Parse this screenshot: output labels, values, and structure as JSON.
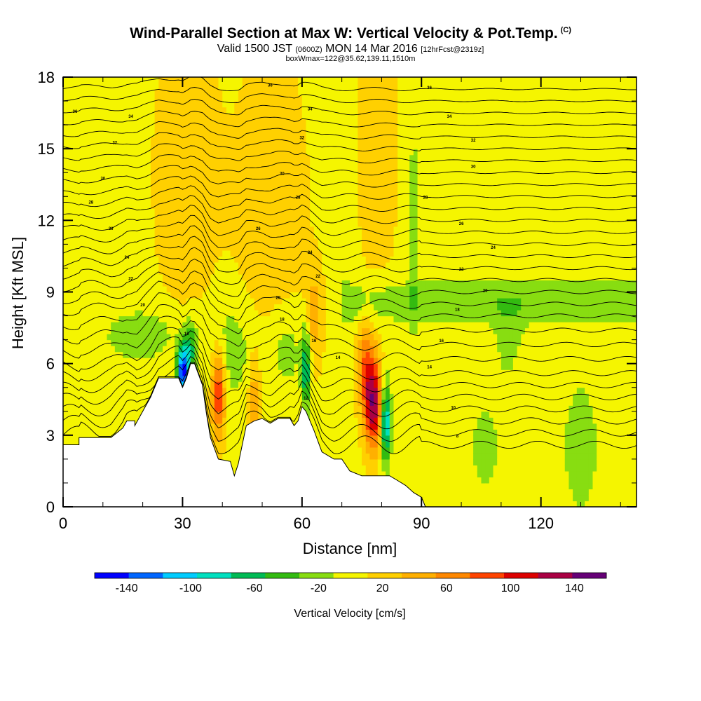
{
  "header": {
    "title": "Wind-Parallel Section at Max W: Vertical Velocity & Pot.Temp.",
    "title_mark": "(C)",
    "valid_a": "Valid 1500 JST",
    "valid_b": "(0600Z)",
    "valid_c": "MON 14 Mar 2016",
    "valid_d": "[12hrFcst@2319z]",
    "boxw": "boxWmax=122@35.62,139.11,1510m"
  },
  "chart_data": {
    "type": "heatmap",
    "xlabel": "Distance [nm]",
    "ylabel": "Height [Kft MSL]",
    "xlim": [
      0,
      144
    ],
    "ylim": [
      0,
      18
    ],
    "x_ticks": [
      "0",
      "30",
      "60",
      "90",
      "120"
    ],
    "y_ticks": [
      "0",
      "3",
      "6",
      "9",
      "12",
      "15",
      "18"
    ],
    "colorbar": {
      "label": "Vertical Velocity [cm/s]",
      "bounds": [
        -160,
        160
      ],
      "tick_labels": [
        "-140",
        "-100",
        "-60",
        "-20",
        "20",
        "60",
        "100",
        "140"
      ],
      "colors": [
        "#0000ff",
        "#0066ff",
        "#00ccff",
        "#00e0c0",
        "#00bb55",
        "#33bb11",
        "#88dd11",
        "#f5f500",
        "#ffd000",
        "#ffb000",
        "#ff8800",
        "#ff4400",
        "#dd0000",
        "#aa0044",
        "#660077"
      ]
    },
    "terrain": [
      [
        0,
        2.6
      ],
      [
        4,
        2.6
      ],
      [
        4,
        2.9
      ],
      [
        12,
        2.9
      ],
      [
        15,
        3.3
      ],
      [
        16,
        3.6
      ],
      [
        18,
        3.6
      ],
      [
        18,
        3.4
      ],
      [
        20,
        4
      ],
      [
        22,
        4.6
      ],
      [
        24,
        5.4
      ],
      [
        26,
        5.4
      ],
      [
        29,
        5.4
      ],
      [
        30,
        5
      ],
      [
        31,
        5.4
      ],
      [
        32,
        6
      ],
      [
        33,
        6
      ],
      [
        35,
        5.1
      ],
      [
        36,
        3.9
      ],
      [
        37,
        2.9
      ],
      [
        39,
        2
      ],
      [
        42,
        1.9
      ],
      [
        43,
        1.3
      ],
      [
        44,
        1.8
      ],
      [
        46,
        3.4
      ],
      [
        48,
        3.6
      ],
      [
        50,
        3.7
      ],
      [
        52,
        3.5
      ],
      [
        54,
        3.7
      ],
      [
        57,
        3.7
      ],
      [
        58,
        3.4
      ],
      [
        59,
        3.6
      ],
      [
        60,
        4.2
      ],
      [
        61,
        4
      ],
      [
        63,
        3.2
      ],
      [
        65,
        2.3
      ],
      [
        68,
        2
      ],
      [
        70,
        2
      ],
      [
        72,
        1.5
      ],
      [
        75,
        1.3
      ],
      [
        77,
        1.3
      ],
      [
        79,
        1.3
      ],
      [
        80,
        1.3
      ],
      [
        82,
        1.3
      ],
      [
        84,
        1.1
      ],
      [
        86,
        0.9
      ],
      [
        88,
        0.6
      ],
      [
        90,
        0.4
      ],
      [
        91,
        0
      ],
      [
        144,
        0
      ]
    ],
    "theta_isentrope_heights": [
      2.6,
      3.1,
      3.6,
      4.1,
      4.6,
      5.1,
      5.6,
      6.2,
      6.8,
      7.4,
      8.0,
      8.5,
      9.0,
      9.5,
      10.0,
      10.5,
      11.0,
      11.5,
      12.0,
      12.5,
      13.0,
      13.5,
      14.0,
      14.5,
      15.0,
      15.5,
      16.0,
      16.5,
      17.0,
      17.5
    ],
    "contour_labels": [
      {
        "x": 3,
        "y": 16.5,
        "text": "36"
      },
      {
        "x": 17,
        "y": 16.3,
        "text": "34"
      },
      {
        "x": 13,
        "y": 15.2,
        "text": "32"
      },
      {
        "x": 10,
        "y": 13.7,
        "text": "30"
      },
      {
        "x": 7,
        "y": 12.7,
        "text": "28"
      },
      {
        "x": 12,
        "y": 11.6,
        "text": "26"
      },
      {
        "x": 16,
        "y": 10.4,
        "text": "24"
      },
      {
        "x": 17,
        "y": 9.5,
        "text": "22"
      },
      {
        "x": 20,
        "y": 8.4,
        "text": "20"
      },
      {
        "x": 52,
        "y": 17.6,
        "text": "36"
      },
      {
        "x": 62,
        "y": 16.6,
        "text": "34"
      },
      {
        "x": 60,
        "y": 15.4,
        "text": "32"
      },
      {
        "x": 55,
        "y": 13.9,
        "text": "30"
      },
      {
        "x": 59,
        "y": 12.9,
        "text": "28"
      },
      {
        "x": 49,
        "y": 11.6,
        "text": "26"
      },
      {
        "x": 62,
        "y": 10.6,
        "text": "24"
      },
      {
        "x": 64,
        "y": 9.6,
        "text": "22"
      },
      {
        "x": 54,
        "y": 8.7,
        "text": "20"
      },
      {
        "x": 55,
        "y": 7.8,
        "text": "18"
      },
      {
        "x": 31,
        "y": 7.2,
        "text": "16"
      },
      {
        "x": 63,
        "y": 6.9,
        "text": "16"
      },
      {
        "x": 69,
        "y": 6.2,
        "text": "14"
      },
      {
        "x": 61,
        "y": 4.5,
        "text": "12"
      },
      {
        "x": 92,
        "y": 17.5,
        "text": "36"
      },
      {
        "x": 97,
        "y": 16.3,
        "text": "34"
      },
      {
        "x": 103,
        "y": 15.3,
        "text": "32"
      },
      {
        "x": 103,
        "y": 14.2,
        "text": "30"
      },
      {
        "x": 91,
        "y": 12.9,
        "text": "28"
      },
      {
        "x": 100,
        "y": 11.8,
        "text": "26"
      },
      {
        "x": 108,
        "y": 10.8,
        "text": "24"
      },
      {
        "x": 100,
        "y": 9.9,
        "text": "22"
      },
      {
        "x": 106,
        "y": 9.0,
        "text": "20"
      },
      {
        "x": 99,
        "y": 8.2,
        "text": "18"
      },
      {
        "x": 95,
        "y": 6.9,
        "text": "16"
      },
      {
        "x": 92,
        "y": 5.8,
        "text": "14"
      },
      {
        "x": 98,
        "y": 4.1,
        "text": "10"
      },
      {
        "x": 99,
        "y": 2.9,
        "text": "8"
      }
    ]
  }
}
